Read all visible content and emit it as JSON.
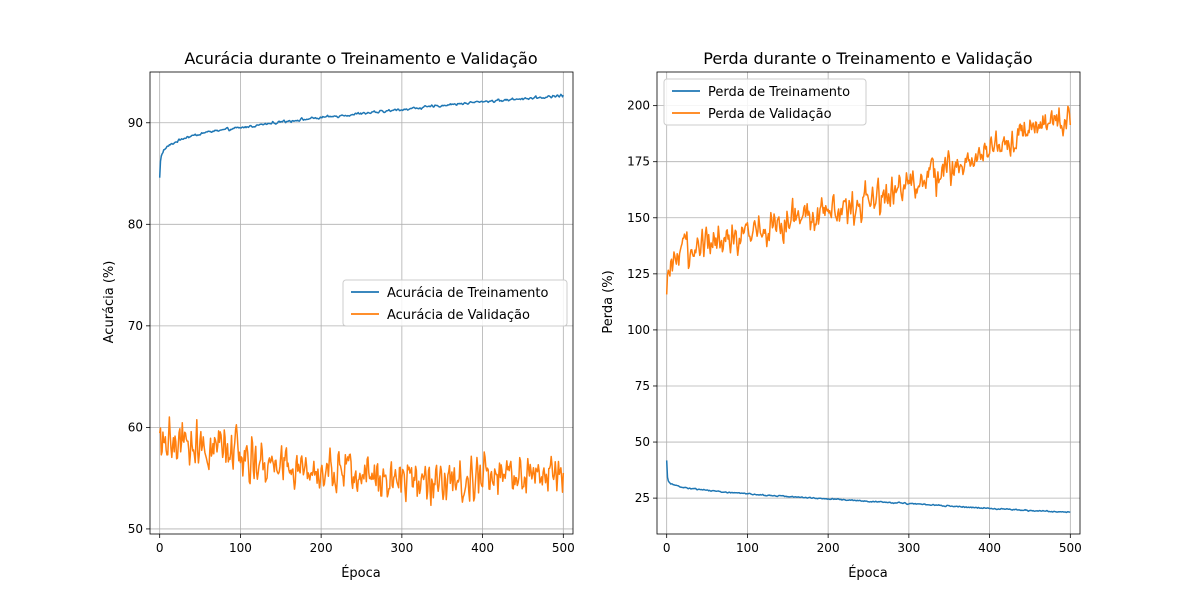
{
  "chart_data": [
    {
      "type": "line",
      "title": "Acurácia durante o Treinamento e Validação",
      "xlabel": "Época",
      "ylabel": "Acurácia (%)",
      "xlim": [
        -12,
        512
      ],
      "ylim": [
        49.5,
        95
      ],
      "xticks": [
        0,
        100,
        200,
        300,
        400,
        500
      ],
      "yticks": [
        50,
        60,
        70,
        80,
        90
      ],
      "grid": true,
      "legend_position": "center-right",
      "series": [
        {
          "name": "Acurácia de Treinamento",
          "color": "#1f77b4",
          "noise": 0.22,
          "x": [
            0,
            1,
            2,
            3,
            5,
            8,
            10,
            15,
            20,
            30,
            40,
            50,
            60,
            70,
            80,
            90,
            100,
            125,
            150,
            175,
            200,
            225,
            250,
            275,
            300,
            325,
            350,
            375,
            400,
            425,
            450,
            475,
            500
          ],
          "values": [
            84.6,
            86.2,
            86.7,
            87.0,
            87.3,
            87.5,
            87.7,
            87.9,
            88.1,
            88.5,
            88.7,
            88.9,
            89.1,
            89.2,
            89.3,
            89.4,
            89.5,
            89.8,
            90.1,
            90.3,
            90.5,
            90.7,
            90.9,
            91.1,
            91.3,
            91.5,
            91.7,
            91.9,
            92.1,
            92.2,
            92.4,
            92.5,
            92.7
          ]
        },
        {
          "name": "Acurácia de Validação",
          "color": "#ff7f0e",
          "noise": 3.6,
          "x": [
            0,
            10,
            20,
            30,
            40,
            50,
            60,
            70,
            80,
            90,
            95,
            100,
            110,
            120,
            140,
            160,
            180,
            200,
            220,
            240,
            260,
            280,
            300,
            320,
            340,
            360,
            380,
            400,
            420,
            440,
            460,
            480,
            500
          ],
          "values": [
            58.5,
            58.0,
            58.1,
            58.2,
            58.3,
            58.2,
            58.1,
            58.0,
            57.8,
            57.7,
            60.0,
            57.5,
            57.0,
            56.6,
            56.3,
            56.0,
            55.8,
            55.7,
            55.5,
            55.4,
            55.3,
            55.2,
            55.1,
            55.1,
            55.0,
            55.0,
            55.0,
            55.1,
            55.2,
            55.3,
            55.3,
            55.4,
            55.6
          ]
        }
      ]
    },
    {
      "type": "line",
      "title": "Perda durante o Treinamento e Validação",
      "xlabel": "Época",
      "ylabel": "Perda (%)",
      "xlim": [
        -12,
        512
      ],
      "ylim": [
        9,
        215
      ],
      "xticks": [
        0,
        100,
        200,
        300,
        400,
        500
      ],
      "yticks": [
        25,
        50,
        75,
        100,
        125,
        150,
        175,
        200
      ],
      "grid": true,
      "legend_position": "upper-left",
      "series": [
        {
          "name": "Perda de Treinamento",
          "color": "#1f77b4",
          "noise": 0.5,
          "x": [
            0,
            1,
            2,
            3,
            5,
            8,
            10,
            15,
            20,
            30,
            40,
            50,
            75,
            100,
            150,
            200,
            250,
            300,
            350,
            400,
            450,
            500
          ],
          "values": [
            41.8,
            34.5,
            33.0,
            32.2,
            31.6,
            31.1,
            30.8,
            30.2,
            29.8,
            29.3,
            28.9,
            28.5,
            27.6,
            26.9,
            25.7,
            24.7,
            23.6,
            22.6,
            21.5,
            20.4,
            19.4,
            18.7
          ]
        },
        {
          "name": "Perda de Validação",
          "color": "#ff7f0e",
          "noise": 12,
          "x": [
            0,
            1,
            3,
            5,
            10,
            20,
            30,
            50,
            75,
            100,
            125,
            150,
            175,
            200,
            225,
            250,
            275,
            300,
            325,
            350,
            375,
            400,
            425,
            450,
            475,
            500
          ],
          "values": [
            112,
            118,
            122,
            126,
            130,
            134,
            137,
            139,
            141,
            144,
            146,
            148,
            150,
            152,
            155,
            158,
            161,
            164,
            168,
            172,
            176,
            181,
            185,
            189,
            192,
            194
          ]
        }
      ]
    }
  ]
}
